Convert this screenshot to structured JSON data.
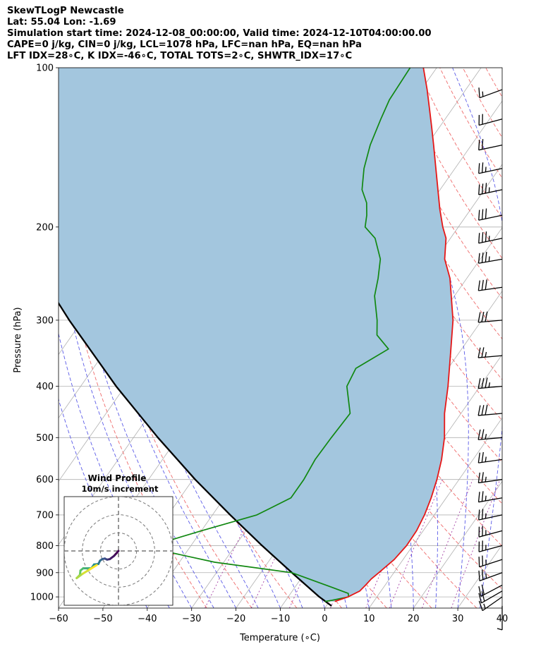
{
  "header": {
    "title": "SkewTLogP Newcastle",
    "location": "Lat: 55.04   Lon: -1.69",
    "times": "Simulation start time: 2024-12-08_00:00:00, Valid time: 2024-12-10T04:00:00.00",
    "indices1": "CAPE=0 j/kg, CIN=0 j/kg, LCL=1078 hPa, LFC=nan hPa, EQ=nan hPa",
    "indices2": "LFT IDX=28∘C, K IDX=-46∘C, TOTAL TOTS=2∘C, SHWTR_IDX=17∘C"
  },
  "chart_data": {
    "type": "skewt",
    "xlabel": "Temperature (∘C)",
    "ylabel": "Pressure (hPa)",
    "xlim": [
      -60,
      40
    ],
    "ylim": [
      1050,
      100
    ],
    "x_ticks": [
      -60,
      -50,
      -40,
      -30,
      -20,
      -10,
      0,
      10,
      20,
      30,
      40
    ],
    "y_ticks": [
      100,
      200,
      300,
      400,
      500,
      600,
      700,
      800,
      900,
      1000
    ],
    "grid": true,
    "colors": {
      "temperature": "#e61717",
      "dewpoint": "#118811",
      "parcel": "#000000",
      "shading": "#a3c6de",
      "dry_adiabat": "#ef6b6b",
      "moist_adiabat": "#5b5be8",
      "mixing_ratio": "#a642a6",
      "isotherm": "#b0b0b0"
    },
    "series": [
      {
        "key": "temperature",
        "points": [
          [
            1020,
            1.2
          ],
          [
            1000,
            3.5
          ],
          [
            975,
            5.2
          ],
          [
            950,
            5.6
          ],
          [
            925,
            5.9
          ],
          [
            900,
            6.6
          ],
          [
            850,
            8.0
          ],
          [
            800,
            8.6
          ],
          [
            750,
            8.5
          ],
          [
            700,
            7.8
          ],
          [
            650,
            6.6
          ],
          [
            600,
            5.0
          ],
          [
            550,
            2.9
          ],
          [
            500,
            0.1
          ],
          [
            450,
            -3.7
          ],
          [
            400,
            -7.2
          ],
          [
            350,
            -11.5
          ],
          [
            300,
            -16.5
          ],
          [
            250,
            -23.8
          ],
          [
            230,
            -28.0
          ],
          [
            210,
            -31.0
          ],
          [
            200,
            -33.5
          ],
          [
            185,
            -37.0
          ],
          [
            170,
            -40.5
          ],
          [
            155,
            -44.3
          ],
          [
            140,
            -48.5
          ],
          [
            130,
            -51.6
          ],
          [
            120,
            -55.0
          ],
          [
            110,
            -58.7
          ],
          [
            100,
            -63.0
          ]
        ]
      },
      {
        "key": "dewpoint",
        "points": [
          [
            1020,
            -1.0
          ],
          [
            1015,
            0.4
          ],
          [
            1000,
            3.6
          ],
          [
            985,
            3.0
          ],
          [
            960,
            -1.5
          ],
          [
            900,
            -13.0
          ],
          [
            860,
            -32.0
          ],
          [
            820,
            -45.0
          ],
          [
            790,
            -47.0
          ],
          [
            750,
            -40.0
          ],
          [
            700,
            -30.0
          ],
          [
            650,
            -25.0
          ],
          [
            600,
            -25.0
          ],
          [
            550,
            -25.6
          ],
          [
            500,
            -25.4
          ],
          [
            450,
            -25.0
          ],
          [
            400,
            -30.0
          ],
          [
            370,
            -30.8
          ],
          [
            340,
            -26.5
          ],
          [
            320,
            -31.3
          ],
          [
            300,
            -33.6
          ],
          [
            270,
            -38.0
          ],
          [
            250,
            -40.0
          ],
          [
            230,
            -42.5
          ],
          [
            210,
            -47.0
          ],
          [
            200,
            -51.0
          ],
          [
            190,
            -52.5
          ],
          [
            180,
            -54.5
          ],
          [
            170,
            -57.6
          ],
          [
            155,
            -60.5
          ],
          [
            140,
            -62.8
          ],
          [
            125,
            -64.5
          ],
          [
            115,
            -65.6
          ],
          [
            100,
            -66.0
          ]
        ]
      },
      {
        "key": "parcel",
        "points": [
          [
            1040,
            1.2
          ],
          [
            1000,
            -3.0
          ],
          [
            900,
            -13.0
          ],
          [
            800,
            -24.0
          ],
          [
            700,
            -36.0
          ],
          [
            600,
            -49.5
          ],
          [
            500,
            -64.5
          ],
          [
            400,
            -82.0
          ],
          [
            300,
            -103.0
          ],
          [
            200,
            -131.0
          ],
          [
            150,
            -148.0
          ],
          [
            100,
            -171.0
          ]
        ]
      }
    ],
    "wind_barbs": [
      {
        "p": 1040,
        "speed_kt": 5,
        "dir": 180
      },
      {
        "p": 1000,
        "speed_kt": 15,
        "dir": 235
      },
      {
        "p": 975,
        "speed_kt": 20,
        "dir": 240
      },
      {
        "p": 950,
        "speed_kt": 20,
        "dir": 242
      },
      {
        "p": 900,
        "speed_kt": 25,
        "dir": 250
      },
      {
        "p": 850,
        "speed_kt": 25,
        "dir": 252
      },
      {
        "p": 800,
        "speed_kt": 25,
        "dir": 255
      },
      {
        "p": 750,
        "speed_kt": 25,
        "dir": 255
      },
      {
        "p": 700,
        "speed_kt": 25,
        "dir": 258
      },
      {
        "p": 650,
        "speed_kt": 25,
        "dir": 260
      },
      {
        "p": 600,
        "speed_kt": 25,
        "dir": 262
      },
      {
        "p": 550,
        "speed_kt": 25,
        "dir": 262
      },
      {
        "p": 500,
        "speed_kt": 25,
        "dir": 265
      },
      {
        "p": 450,
        "speed_kt": 30,
        "dir": 265
      },
      {
        "p": 400,
        "speed_kt": 35,
        "dir": 265
      },
      {
        "p": 350,
        "speed_kt": 25,
        "dir": 265
      },
      {
        "p": 300,
        "speed_kt": 30,
        "dir": 265
      },
      {
        "p": 260,
        "speed_kt": 30,
        "dir": 262
      },
      {
        "p": 230,
        "speed_kt": 35,
        "dir": 260
      },
      {
        "p": 210,
        "speed_kt": 35,
        "dir": 258
      },
      {
        "p": 190,
        "speed_kt": 30,
        "dir": 258
      },
      {
        "p": 170,
        "speed_kt": 35,
        "dir": 258
      },
      {
        "p": 155,
        "speed_kt": 25,
        "dir": 258
      },
      {
        "p": 140,
        "speed_kt": 20,
        "dir": 258
      },
      {
        "p": 125,
        "speed_kt": 20,
        "dir": 255
      },
      {
        "p": 110,
        "speed_kt": 15,
        "dir": 250
      }
    ],
    "inset": {
      "title": "Wind Profile",
      "subtitle": "10m/s increment",
      "hodograph_uv": [
        [
          0,
          0
        ],
        [
          -0.8,
          -0.9
        ],
        [
          -1.6,
          -1.5
        ],
        [
          -2.1,
          -1.6
        ],
        [
          -2.5,
          -1.4
        ],
        [
          -3.0,
          -1.5
        ],
        [
          -3.4,
          -1.8
        ],
        [
          -3.7,
          -2.4
        ],
        [
          -4.5,
          -2.5
        ],
        [
          -5.0,
          -3.2
        ],
        [
          -5.6,
          -3.2
        ],
        [
          -6.5,
          -3.2
        ],
        [
          -7.0,
          -3.6
        ],
        [
          -7.1,
          -4.4
        ],
        [
          -7.7,
          -5.0
        ],
        [
          -6.6,
          -4.2
        ],
        [
          -5.3,
          -3.4
        ],
        [
          -4.0,
          -2.6
        ]
      ],
      "ring_radii": [
        10,
        20,
        30
      ],
      "range": 30
    }
  }
}
